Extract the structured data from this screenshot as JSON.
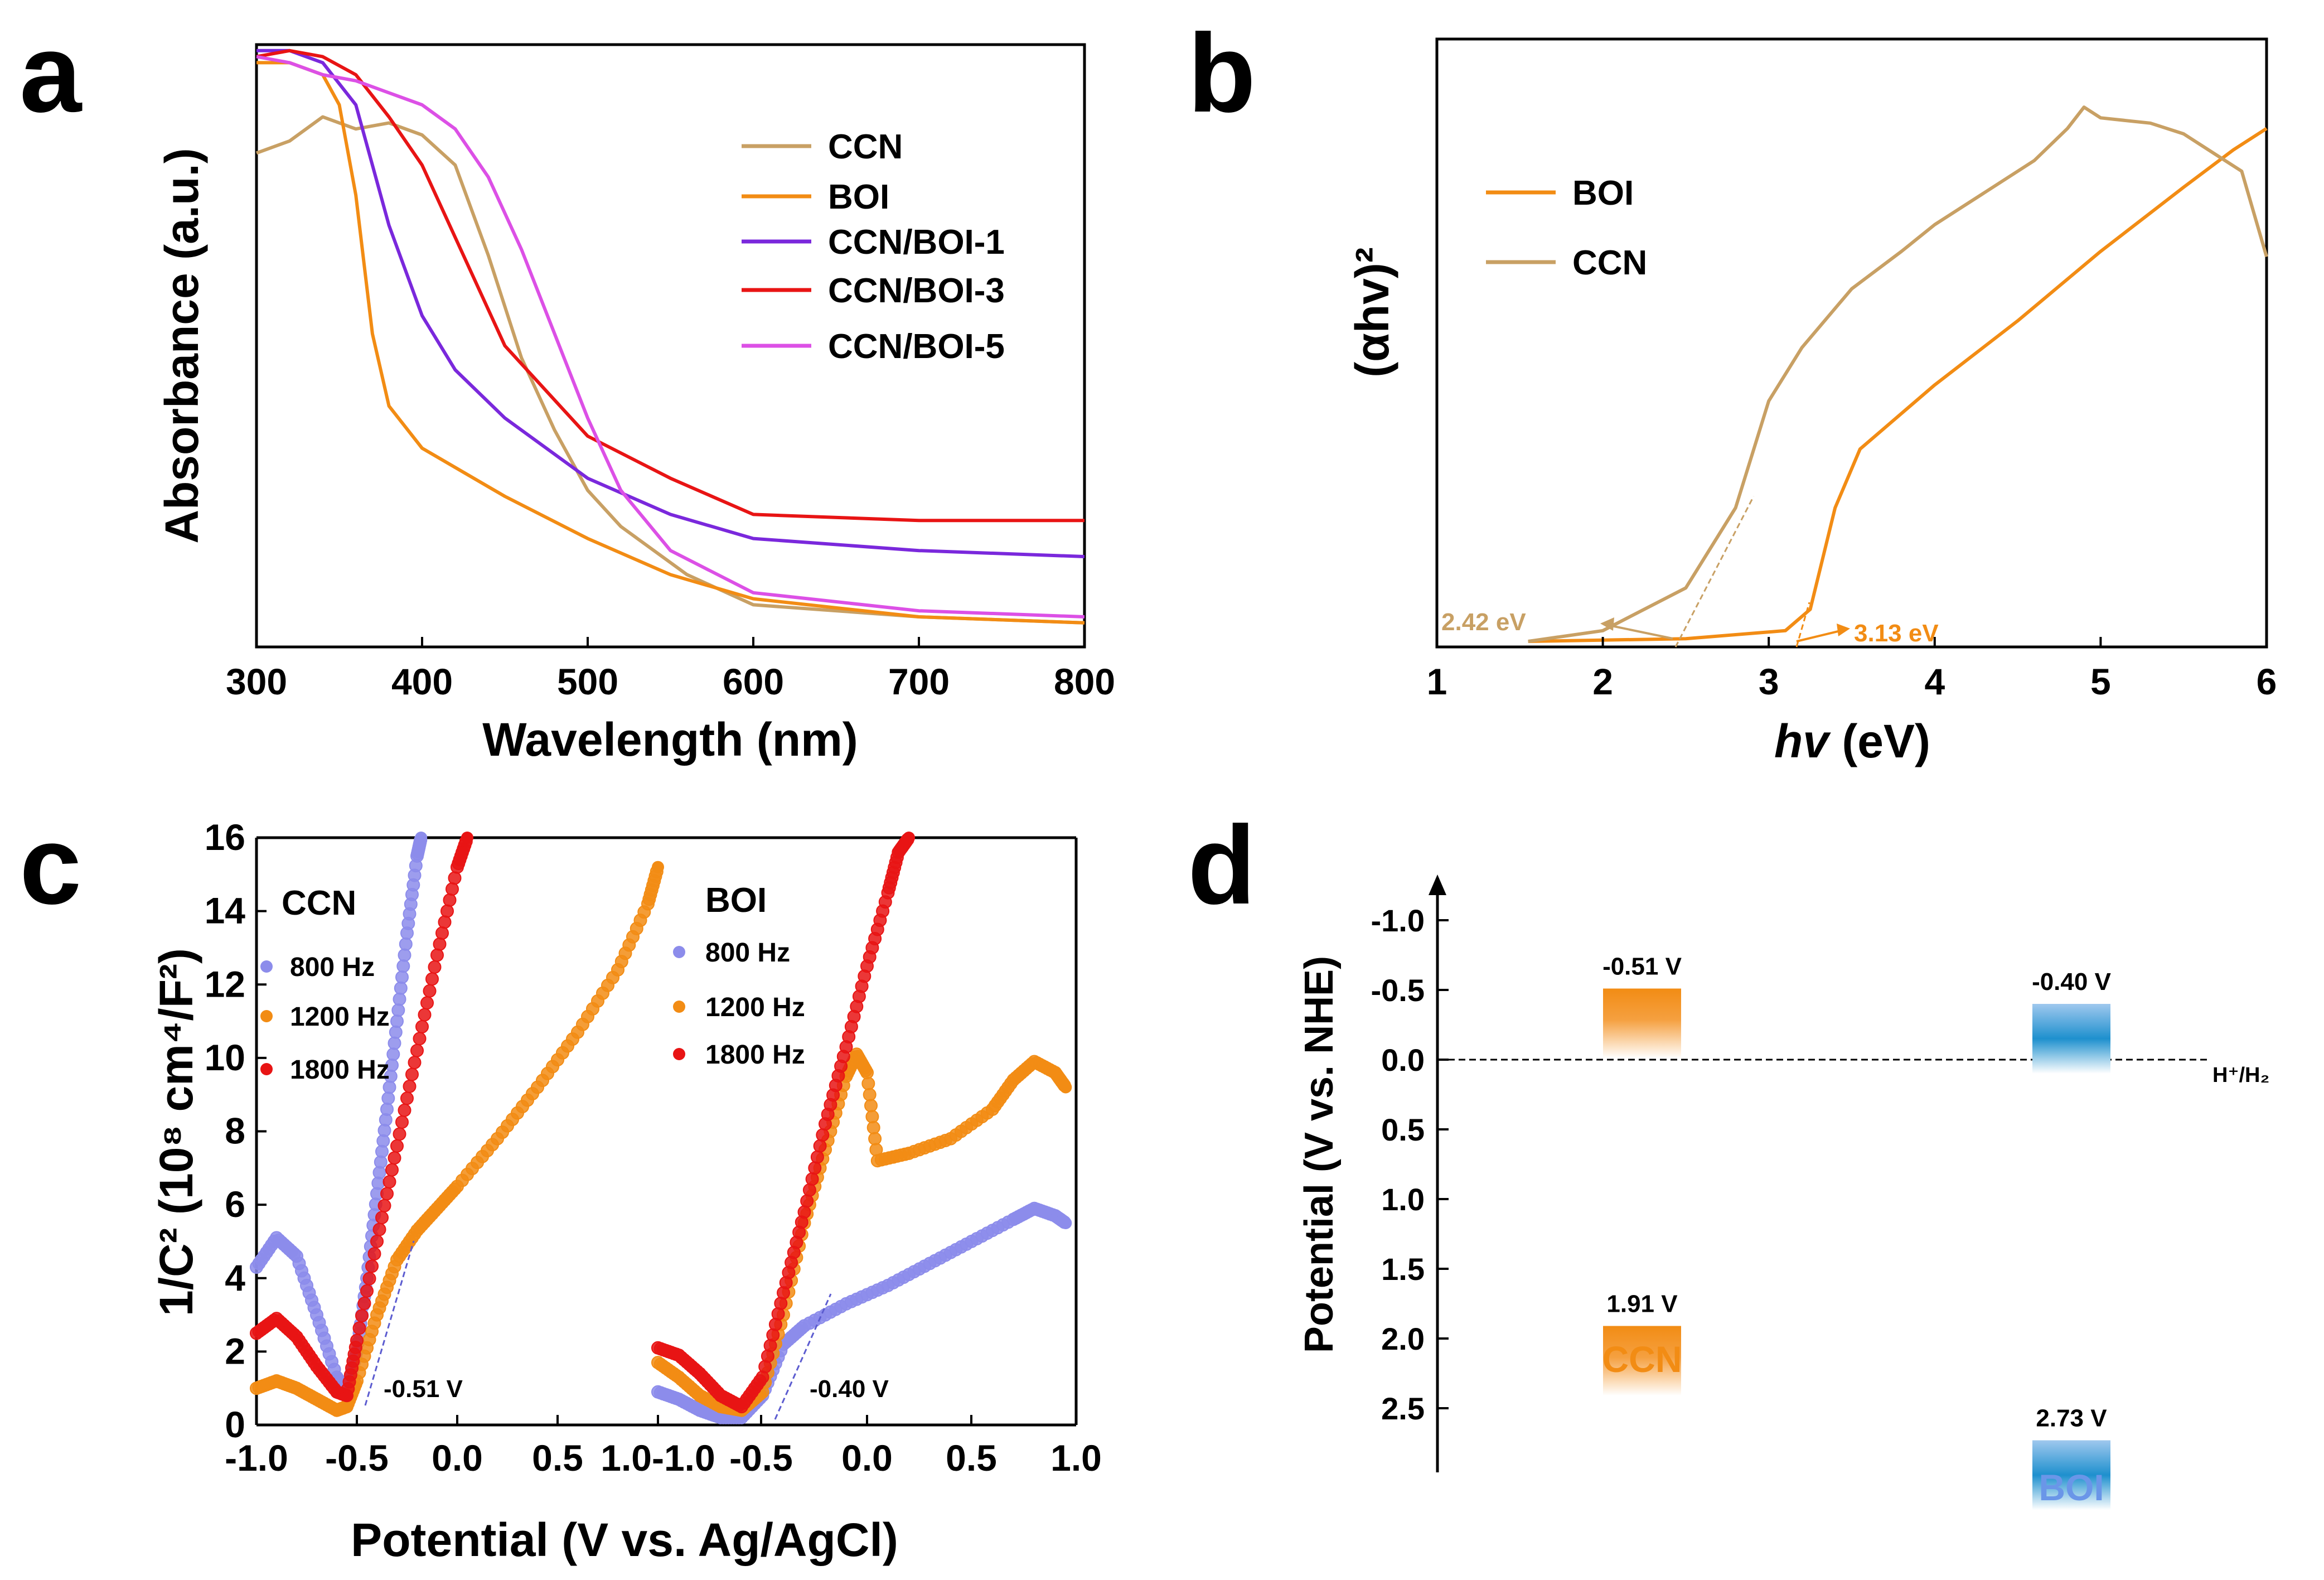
{
  "colors": {
    "CCN": "#C8A064",
    "BOI": "#F28C14",
    "CCN/BOI-1": "#7A28DC",
    "CCN/BOI-3": "#E81414",
    "CCN/BOI-5": "#DC50E6",
    "800": "#8C8CEB",
    "1200": "#F28C14",
    "1800": "#E81414",
    "ccn_band": "#F28C14",
    "boi_band": "#1E90CE",
    "boi_text": "#6A96E8"
  },
  "chart_data": [
    {
      "panel": "a",
      "type": "line",
      "xlabel": "Wavelength (nm)",
      "ylabel": "Absorbance (a.u.)",
      "xlim": [
        300,
        800
      ],
      "ylim": [
        0,
        1
      ],
      "xticks": [
        300,
        400,
        500,
        600,
        700,
        800
      ],
      "series": [
        {
          "name": "CCN",
          "x": [
            300,
            320,
            340,
            360,
            380,
            400,
            420,
            440,
            460,
            480,
            500,
            520,
            560,
            600,
            700,
            800
          ],
          "y": [
            0.82,
            0.84,
            0.88,
            0.86,
            0.87,
            0.85,
            0.8,
            0.65,
            0.48,
            0.36,
            0.26,
            0.2,
            0.12,
            0.07,
            0.05,
            0.04
          ]
        },
        {
          "name": "BOI",
          "x": [
            300,
            320,
            340,
            350,
            360,
            370,
            380,
            400,
            450,
            500,
            550,
            600,
            700,
            800
          ],
          "y": [
            0.97,
            0.97,
            0.95,
            0.9,
            0.75,
            0.52,
            0.4,
            0.33,
            0.25,
            0.18,
            0.12,
            0.08,
            0.05,
            0.04
          ]
        },
        {
          "name": "CCN/BOI-1",
          "x": [
            300,
            320,
            340,
            360,
            380,
            400,
            420,
            450,
            500,
            550,
            600,
            700,
            800
          ],
          "y": [
            0.99,
            0.99,
            0.97,
            0.9,
            0.7,
            0.55,
            0.46,
            0.38,
            0.28,
            0.22,
            0.18,
            0.16,
            0.15
          ]
        },
        {
          "name": "CCN/BOI-3",
          "x": [
            300,
            320,
            340,
            360,
            380,
            400,
            420,
            450,
            500,
            550,
            600,
            700,
            800
          ],
          "y": [
            0.98,
            0.99,
            0.98,
            0.95,
            0.88,
            0.8,
            0.68,
            0.5,
            0.35,
            0.28,
            0.22,
            0.21,
            0.21
          ]
        },
        {
          "name": "CCN/BOI-5",
          "x": [
            300,
            320,
            340,
            360,
            380,
            400,
            420,
            440,
            460,
            480,
            500,
            520,
            550,
            600,
            700,
            800
          ],
          "y": [
            0.98,
            0.97,
            0.95,
            0.94,
            0.92,
            0.9,
            0.86,
            0.78,
            0.66,
            0.52,
            0.38,
            0.26,
            0.16,
            0.09,
            0.06,
            0.05
          ]
        }
      ]
    },
    {
      "panel": "b",
      "type": "line",
      "xlabel": "hv (eV)",
      "ylabel": "(αhv)²",
      "xlim": [
        1,
        6
      ],
      "ylim": [
        0,
        1
      ],
      "xticks": [
        1,
        2,
        3,
        4,
        5,
        6
      ],
      "series": [
        {
          "name": "BOI",
          "x": [
            1.55,
            2.5,
            3.1,
            3.25,
            3.4,
            3.55,
            4,
            4.5,
            5,
            5.5,
            5.8,
            6
          ],
          "y": [
            0.0,
            0.005,
            0.02,
            0.06,
            0.25,
            0.36,
            0.48,
            0.6,
            0.73,
            0.85,
            0.92,
            0.96
          ]
        },
        {
          "name": "CCN",
          "x": [
            1.55,
            2.0,
            2.5,
            2.8,
            3.0,
            3.2,
            3.5,
            3.8,
            4.0,
            4.3,
            4.6,
            4.8,
            4.9,
            5.0,
            5.3,
            5.5,
            5.7,
            5.85,
            6.0
          ],
          "y": [
            0.0,
            0.02,
            0.1,
            0.25,
            0.45,
            0.55,
            0.66,
            0.73,
            0.78,
            0.84,
            0.9,
            0.96,
            1.0,
            0.98,
            0.97,
            0.95,
            0.91,
            0.88,
            0.72
          ]
        }
      ],
      "annotations": [
        {
          "text": "2.42 eV",
          "series": "CCN"
        },
        {
          "text": "3.13 eV",
          "series": "BOI"
        }
      ],
      "legend": [
        "BOI",
        "CCN"
      ]
    },
    {
      "panel": "c",
      "type": "scatter",
      "ylabel": "1/C² (10⁸ cm⁴/F²)",
      "xlabel": "Potential (V vs. Ag/AgCl)",
      "ylim": [
        0,
        16
      ],
      "yticks": [
        0,
        2,
        4,
        6,
        8,
        10,
        12,
        14,
        16
      ],
      "xtick_labels": [
        "-1.0",
        "-0.5",
        "0.0",
        "0.5",
        "1.0-1.0",
        "-0.5",
        "0.0",
        "0.5",
        "1.0"
      ],
      "subplots": [
        {
          "name": "CCN",
          "xlim": [
            -1.0,
            1.0
          ],
          "annotation": "-0.51 V",
          "series": [
            {
              "name": "800 Hz",
              "x": [
                -1.0,
                -0.9,
                -0.8,
                -0.7,
                -0.6,
                -0.55,
                -0.5,
                -0.45,
                -0.4,
                -0.35,
                -0.3,
                -0.25,
                -0.2,
                -0.18
              ],
              "y": [
                4.3,
                5.1,
                4.6,
                3.0,
                1.3,
                0.9,
                2.0,
                4.0,
                6.3,
                8.6,
                11.0,
                13.4,
                15.5,
                16.0
              ]
            },
            {
              "name": "1200 Hz",
              "x": [
                -1.0,
                -0.9,
                -0.8,
                -0.7,
                -0.6,
                -0.55,
                -0.5,
                -0.4,
                -0.3,
                -0.2,
                -0.1,
                0.0,
                0.2,
                0.4,
                0.6,
                0.8,
                0.95,
                1.0
              ],
              "y": [
                1.0,
                1.2,
                1.0,
                0.7,
                0.4,
                0.5,
                1.2,
                3.0,
                4.5,
                5.3,
                5.9,
                6.5,
                7.8,
                9.2,
                10.7,
                12.4,
                14.2,
                15.2
              ]
            },
            {
              "name": "1800 Hz",
              "x": [
                -1.0,
                -0.9,
                -0.8,
                -0.7,
                -0.6,
                -0.55,
                -0.5,
                -0.4,
                -0.3,
                -0.2,
                -0.1,
                0.0,
                0.05
              ],
              "y": [
                2.5,
                2.9,
                2.4,
                1.6,
                0.9,
                0.8,
                2.3,
                5.0,
                7.6,
                10.2,
                12.8,
                15.2,
                16.0
              ]
            }
          ]
        },
        {
          "name": "BOI",
          "xlim": [
            -1.0,
            1.0
          ],
          "annotation": "-0.40 V",
          "series": [
            {
              "name": "800 Hz",
              "x": [
                -1.0,
                -0.9,
                -0.8,
                -0.7,
                -0.6,
                -0.5,
                -0.4,
                -0.3,
                -0.1,
                0.1,
                0.3,
                0.5,
                0.7,
                0.8,
                0.9,
                0.95
              ],
              "y": [
                0.9,
                0.7,
                0.4,
                0.2,
                0.2,
                0.8,
                2.2,
                2.7,
                3.3,
                3.8,
                4.4,
                5.0,
                5.6,
                5.9,
                5.7,
                5.5
              ]
            },
            {
              "name": "1200 Hz",
              "x": [
                -1.0,
                -0.9,
                -0.8,
                -0.7,
                -0.6,
                -0.5,
                -0.4,
                -0.3,
                -0.2,
                -0.1,
                -0.05,
                0.0,
                0.05,
                0.2,
                0.4,
                0.6,
                0.7,
                0.8,
                0.9,
                0.95
              ],
              "y": [
                1.7,
                1.3,
                0.8,
                0.5,
                0.4,
                0.9,
                3.0,
                5.5,
                7.5,
                9.5,
                10.1,
                9.6,
                7.2,
                7.4,
                7.8,
                8.6,
                9.4,
                9.9,
                9.6,
                9.2
              ]
            },
            {
              "name": "1800 Hz",
              "x": [
                -1.0,
                -0.9,
                -0.8,
                -0.7,
                -0.6,
                -0.5,
                -0.4,
                -0.3,
                -0.2,
                -0.1,
                0.0,
                0.1,
                0.15,
                0.2
              ],
              "y": [
                2.1,
                1.9,
                1.4,
                0.8,
                0.5,
                1.3,
                3.6,
                5.8,
                8.2,
                10.3,
                12.5,
                14.5,
                15.6,
                16.0
              ]
            }
          ]
        }
      ]
    },
    {
      "panel": "d",
      "type": "diagram",
      "ylabel": "Potential (V vs. NHE)",
      "ylim": [
        3.0,
        -1.4
      ],
      "yticks": [
        -1.0,
        -0.5,
        0.0,
        0.5,
        1.0,
        1.5,
        2.0,
        2.5
      ],
      "ytick_labels": [
        "-1.0",
        "-0.5",
        "0.0",
        "0.5",
        "1.0",
        "1.5",
        "2.0",
        "2.5"
      ],
      "reference_line": {
        "label": "H⁺/H₂",
        "value": 0.0
      },
      "materials": [
        {
          "name": "CCN",
          "cb": -0.51,
          "vb": 1.91,
          "cb_label": "-0.51 V",
          "vb_label": "1.91 V"
        },
        {
          "name": "BOI",
          "cb": -0.4,
          "vb": 2.73,
          "cb_label": "-0.40 V",
          "vb_label": "2.73 V"
        }
      ]
    }
  ],
  "panel_labels": [
    "a",
    "b",
    "c",
    "d"
  ],
  "legend_a": [
    "CCN",
    "BOI",
    "CCN/BOI-1",
    "CCN/BOI-3",
    "CCN/BOI-5"
  ],
  "legend_c_ccn_title": "CCN",
  "legend_c_boi_title": "BOI",
  "legend_c_items": [
    "800 Hz",
    "1200 Hz",
    "1800 Hz"
  ]
}
